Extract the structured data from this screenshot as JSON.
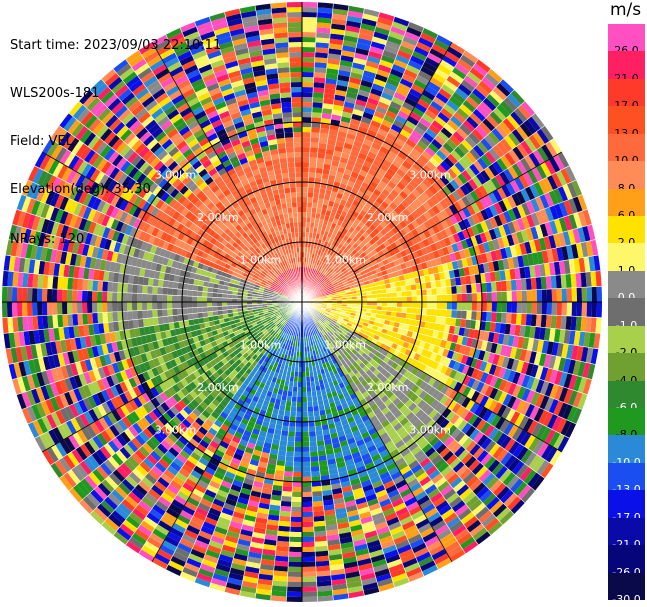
{
  "header": {
    "start_time": "Start time: 2023/09/03 22:10:11",
    "instrument": "WLS200s-181",
    "field": "Field: VEL",
    "elevation": "Elevation(deg): 35.30",
    "nrays": "NRays: 120"
  },
  "colorbar": {
    "title": "m/s",
    "bins": [
      {
        "label": "26.0",
        "color": "#ff4fc0"
      },
      {
        "label": "21.0",
        "color": "#ff1f62"
      },
      {
        "label": "17.0",
        "color": "#ff3a2a"
      },
      {
        "label": "13.0",
        "color": "#ff5022"
      },
      {
        "label": "10.0",
        "color": "#ff6a3c"
      },
      {
        "label": "8.0",
        "color": "#ff8b56"
      },
      {
        "label": "6.0",
        "color": "#ffa018"
      },
      {
        "label": "2.0",
        "color": "#ffe200"
      },
      {
        "label": "1.0",
        "color": "#fff76a"
      },
      {
        "label": "0.0",
        "color": "#8a8a8a"
      },
      {
        "label": "-1.0",
        "color": "#6e6e6e"
      },
      {
        "label": "-2.0",
        "color": "#a8d04a"
      },
      {
        "label": "-4.0",
        "color": "#6fa030"
      },
      {
        "label": "-6.0",
        "color": "#2f8a2f"
      },
      {
        "label": "-8.0",
        "color": "#1f9a1f"
      },
      {
        "label": "-10.0",
        "color": "#2a8ad8"
      },
      {
        "label": "-13.0",
        "color": "#1a4ef0"
      },
      {
        "label": "-17.0",
        "color": "#0a10e8"
      },
      {
        "label": "-21.0",
        "color": "#0a0aa8"
      },
      {
        "label": "-26.0",
        "color": "#06067a"
      },
      {
        "label": "-30.0",
        "color": "#0a0a4a"
      }
    ]
  },
  "range_rings": {
    "labels": [
      "1.00km",
      "2.00km",
      "3.00km"
    ]
  },
  "colors": {
    "grid": "#000000",
    "ring_label": "#ffffff"
  }
}
